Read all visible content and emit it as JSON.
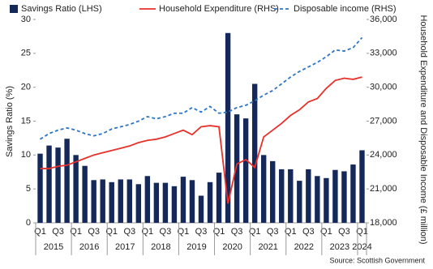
{
  "chart_data": {
    "type": "bar-line",
    "categories": [
      "Q1",
      null,
      "Q3",
      null,
      "Q1",
      null,
      "Q3",
      null,
      "Q1",
      null,
      "Q3",
      null,
      "Q1",
      null,
      "Q3",
      null,
      "Q1",
      null,
      "Q3",
      null,
      "Q1",
      null,
      "Q3",
      null,
      "Q1",
      null,
      "Q3",
      null,
      "Q1",
      null,
      "Q3",
      null,
      "Q1",
      null,
      "Q3",
      null,
      "Q1"
    ],
    "years": [
      "2015",
      "2016",
      "2017",
      "2018",
      "2019",
      "2020",
      "2021",
      "2022",
      "2023",
      "2024"
    ],
    "ylabel": "Savings Ratio (%)",
    "y2label": "Household Expenditure and Disposable Income (£ million)",
    "source": "Source: Scottish Government",
    "ylim": [
      0,
      30
    ],
    "yticks": [
      0,
      5,
      10,
      15,
      20,
      25,
      30
    ],
    "y2lim": [
      18000,
      36000
    ],
    "y2ticks": [
      {
        "value": 18000,
        "label": "18,000"
      },
      {
        "value": 21000,
        "label": "21,000"
      },
      {
        "value": 24000,
        "label": "24,000"
      },
      {
        "value": 27000,
        "label": "27,000"
      },
      {
        "value": 30000,
        "label": "30,000"
      },
      {
        "value": 33000,
        "label": "33,000"
      },
      {
        "value": 36000,
        "label": "36,000"
      }
    ],
    "series": [
      {
        "name": "Savings Ratio (LHS)",
        "type": "bar",
        "color": "#14285a",
        "values": [
          10.2,
          11.4,
          11.1,
          12.4,
          10.0,
          8.4,
          6.3,
          6.4,
          6.0,
          6.4,
          6.4,
          5.7,
          6.9,
          5.9,
          5.9,
          5.4,
          6.8,
          6.3,
          4.0,
          6.0,
          7.4,
          28.0,
          16.0,
          15.4,
          20.5,
          10.0,
          9.1,
          7.9,
          7.9,
          6.2,
          7.9,
          6.9,
          6.6,
          7.8,
          7.6,
          8.6,
          10.7
        ]
      },
      {
        "name": "Household Expenditure (RHS)",
        "type": "line",
        "axis": "y2",
        "color": "#e8312a",
        "dashed": false,
        "values": [
          22800,
          22800,
          23000,
          23100,
          23400,
          23700,
          24000,
          24200,
          24400,
          24600,
          24800,
          25100,
          25300,
          25400,
          25600,
          25900,
          26200,
          25800,
          26500,
          26600,
          26500,
          19700,
          23200,
          23600,
          22900,
          25600,
          26200,
          26800,
          27500,
          28000,
          28700,
          29000,
          29900,
          30600,
          30800,
          30700,
          30900
        ]
      },
      {
        "name": "Disposable income (RHS)",
        "type": "line",
        "axis": "y2",
        "color": "#2e75c4",
        "dashed": true,
        "values": [
          25400,
          25900,
          26200,
          26400,
          26200,
          25900,
          25700,
          25900,
          26300,
          26500,
          26700,
          27000,
          27400,
          27200,
          27400,
          27700,
          27700,
          28200,
          27800,
          28300,
          27700,
          27800,
          28200,
          28400,
          28800,
          29300,
          29700,
          30300,
          30900,
          31400,
          31800,
          32200,
          32700,
          33300,
          33200,
          33500,
          34400
        ]
      }
    ]
  }
}
